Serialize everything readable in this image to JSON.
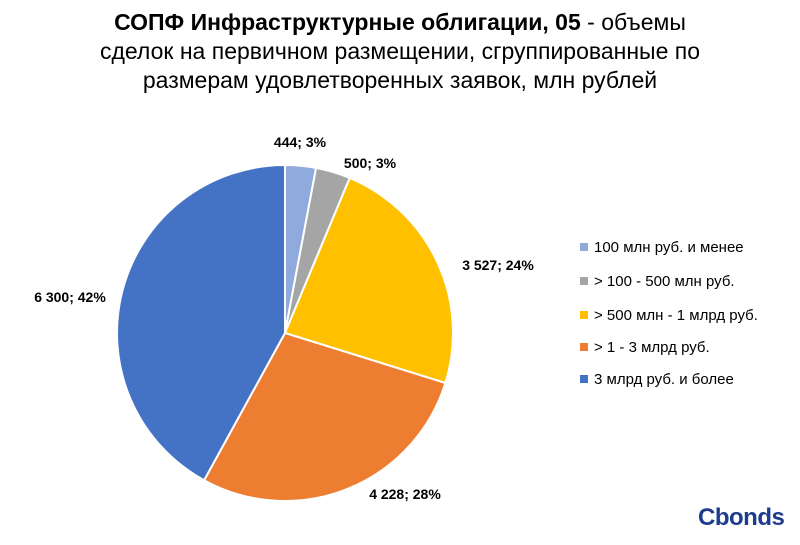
{
  "title": {
    "bold": "СОПФ Инфраструктурные облигации, 05",
    "rest_line1": " - объемы",
    "line2": "сделок на первичном размещении, сгруппированные по",
    "line3": "размерам удовлетворенных заявок, млн рублей"
  },
  "logo": {
    "text": "Cbonds"
  },
  "chart_data": {
    "type": "pie",
    "title": "СОПФ Инфраструктурные облигации, 05 - объемы сделок на первичном размещении, сгруппированные по размерам удовлетворенных заявок, млн рублей",
    "legend_position": "right",
    "slices": [
      {
        "name": "100 млн руб. и менее",
        "value": 444,
        "label": "444; 3%",
        "color": "#8faadc"
      },
      {
        "name": "> 100 - 500 млн руб.",
        "value": 500,
        "label": "500; 3%",
        "color": "#a5a5a5"
      },
      {
        "name": "> 500 млн - 1 млрд руб.",
        "value": 3527,
        "label": "3 527; 24%",
        "color": "#ffc000"
      },
      {
        "name": "> 1 - 3 млрд руб.",
        "value": 4228,
        "label": "4 228; 28%",
        "color": "#ed7d31"
      },
      {
        "name": "3 млрд руб. и более",
        "value": 6300,
        "label": "6 300; 42%",
        "color": "#4472c4"
      }
    ]
  }
}
